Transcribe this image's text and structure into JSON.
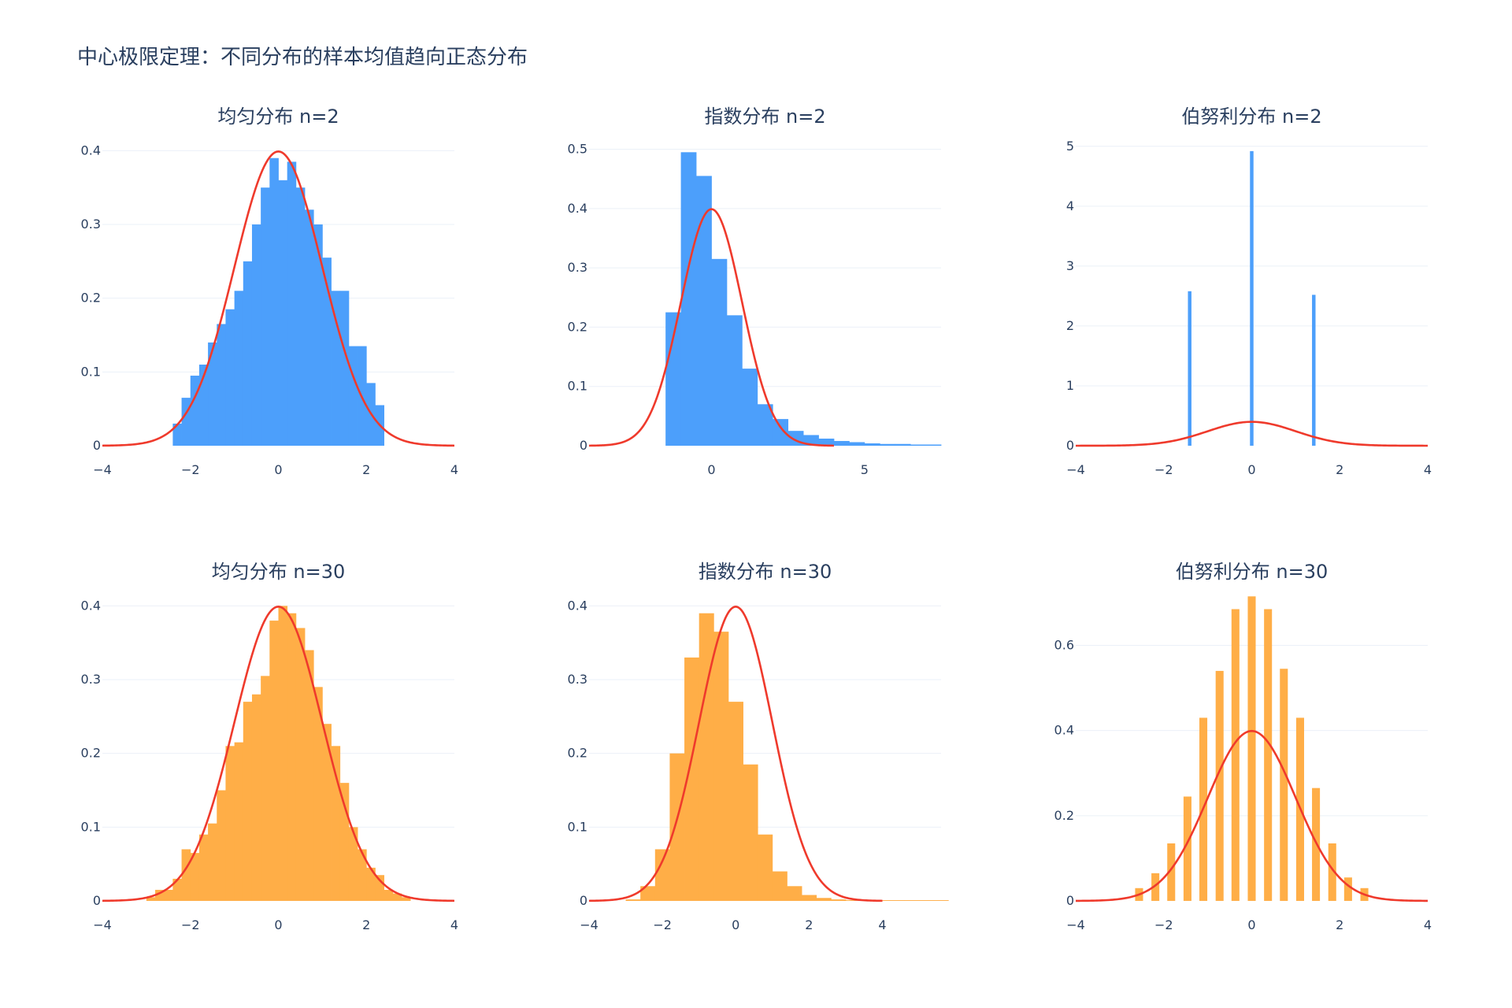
{
  "title": "中心极限定理：不同分布的样本均值趋向正态分布",
  "colors": {
    "small_n": "#4c9ffb",
    "large_n": "#ffae47",
    "curve": "#ef3a2c",
    "text": "#2a3f5f",
    "grid": "#ebf0f8"
  },
  "chart_data": [
    {
      "type": "bar",
      "title": "均匀分布 n=2",
      "color": "small_n",
      "x_ticks": [
        "−4",
        "−2",
        "0",
        "2",
        "4"
      ],
      "x_tick_values": [
        -4,
        -2,
        0,
        2,
        4
      ],
      "y_ticks": [
        "0",
        "0.1",
        "0.2",
        "0.3",
        "0.4"
      ],
      "y_tick_values": [
        0,
        0.1,
        0.2,
        0.3,
        0.4
      ],
      "xlim": [
        -4,
        4
      ],
      "ylim": [
        0,
        0.41
      ],
      "curve_xlim": [
        -4,
        4
      ],
      "bin_start": -2.4,
      "bin_width": 0.2,
      "values": [
        0.03,
        0.065,
        0.095,
        0.11,
        0.14,
        0.165,
        0.185,
        0.21,
        0.25,
        0.3,
        0.35,
        0.39,
        0.36,
        0.385,
        0.35,
        0.32,
        0.3,
        0.255,
        0.21,
        0.21,
        0.135,
        0.135,
        0.085,
        0.055
      ],
      "curve": "normal(0,1)"
    },
    {
      "type": "bar",
      "title": "指数分布 n=2",
      "color": "small_n",
      "x_ticks": [
        "0",
        "5"
      ],
      "x_tick_values": [
        0,
        5
      ],
      "y_ticks": [
        "0",
        "0.1",
        "0.2",
        "0.3",
        "0.4",
        "0.5"
      ],
      "y_tick_values": [
        0,
        0.1,
        0.2,
        0.3,
        0.4,
        0.5
      ],
      "xlim": [
        -4,
        7.5
      ],
      "ylim": [
        0,
        0.51
      ],
      "curve_xlim": [
        -4,
        4
      ],
      "bin_start": -1.5,
      "bin_width": 0.5,
      "values": [
        0.225,
        0.495,
        0.455,
        0.315,
        0.22,
        0.13,
        0.07,
        0.045,
        0.025,
        0.018,
        0.012,
        0.008,
        0.006,
        0.004,
        0.003,
        0.003,
        0.002,
        0.002
      ],
      "curve": "normal(0,1)"
    },
    {
      "type": "bar",
      "title": "伯努利分布 n=2",
      "color": "small_n",
      "x_ticks": [
        "−4",
        "−2",
        "0",
        "2",
        "4"
      ],
      "x_tick_values": [
        -4,
        -2,
        0,
        2,
        4
      ],
      "y_ticks": [
        "0",
        "1",
        "2",
        "3",
        "4",
        "5"
      ],
      "y_tick_values": [
        0,
        1,
        2,
        3,
        4,
        5
      ],
      "xlim": [
        -4,
        4
      ],
      "ylim": [
        0,
        5.05
      ],
      "curve_xlim": [
        -4,
        4
      ],
      "bars": [
        {
          "x": -1.41,
          "width": 0.08,
          "value": 2.58
        },
        {
          "x": 0.0,
          "width": 0.08,
          "value": 4.92
        },
        {
          "x": 1.41,
          "width": 0.08,
          "value": 2.52
        }
      ],
      "curve": "normal(0,1)"
    },
    {
      "type": "bar",
      "title": "均匀分布 n=30",
      "color": "large_n",
      "x_ticks": [
        "−4",
        "−2",
        "0",
        "2",
        "4"
      ],
      "x_tick_values": [
        -4,
        -2,
        0,
        2,
        4
      ],
      "y_ticks": [
        "0",
        "0.1",
        "0.2",
        "0.3",
        "0.4"
      ],
      "y_tick_values": [
        0,
        0.1,
        0.2,
        0.3,
        0.4
      ],
      "xlim": [
        -4,
        4
      ],
      "ylim": [
        0,
        0.41
      ],
      "curve_xlim": [
        -4,
        4
      ],
      "bin_start": -3.0,
      "bin_width": 0.2,
      "values": [
        0.005,
        0.015,
        0.015,
        0.03,
        0.07,
        0.065,
        0.09,
        0.105,
        0.15,
        0.21,
        0.215,
        0.27,
        0.28,
        0.305,
        0.38,
        0.4,
        0.39,
        0.37,
        0.34,
        0.29,
        0.24,
        0.21,
        0.16,
        0.1,
        0.07,
        0.045,
        0.035,
        0.015,
        0.01,
        0.005
      ],
      "curve": "normal(0,1)"
    },
    {
      "type": "bar",
      "title": "指数分布 n=30",
      "color": "large_n",
      "x_ticks": [
        "−4",
        "−2",
        "0",
        "2",
        "4"
      ],
      "x_tick_values": [
        -4,
        -2,
        0,
        2,
        4
      ],
      "y_ticks": [
        "0",
        "0.1",
        "0.2",
        "0.3",
        "0.4"
      ],
      "y_tick_values": [
        0,
        0.1,
        0.2,
        0.3,
        0.4
      ],
      "xlim": [
        -4,
        5.6
      ],
      "ylim": [
        0,
        0.41
      ],
      "curve_xlim": [
        -4,
        4
      ],
      "bin_start": -3.0,
      "bin_width": 0.4,
      "values": [
        0.002,
        0.02,
        0.07,
        0.2,
        0.33,
        0.39,
        0.365,
        0.27,
        0.185,
        0.09,
        0.04,
        0.02,
        0.008,
        0.004,
        0.002,
        0.001,
        0.001,
        0.001,
        0.001,
        0.001,
        0.001,
        0.001
      ],
      "curve": "normal(0,1)"
    },
    {
      "type": "bar",
      "title": "伯努利分布 n=30",
      "color": "large_n",
      "x_ticks": [
        "−4",
        "−2",
        "0",
        "2",
        "4"
      ],
      "x_tick_values": [
        -4,
        -2,
        0,
        2,
        4
      ],
      "y_ticks": [
        "0",
        "0.2",
        "0.4",
        "0.6"
      ],
      "y_tick_values": [
        0,
        0.2,
        0.4,
        0.6
      ],
      "xlim": [
        -4,
        4
      ],
      "ylim": [
        0,
        0.71
      ],
      "curve_xlim": [
        -4,
        4
      ],
      "bars": [
        {
          "x": -2.56,
          "width": 0.18,
          "value": 0.03
        },
        {
          "x": -2.19,
          "width": 0.18,
          "value": 0.065
        },
        {
          "x": -1.83,
          "width": 0.18,
          "value": 0.135
        },
        {
          "x": -1.46,
          "width": 0.18,
          "value": 0.245
        },
        {
          "x": -1.1,
          "width": 0.18,
          "value": 0.43
        },
        {
          "x": -0.73,
          "width": 0.18,
          "value": 0.54
        },
        {
          "x": -0.37,
          "width": 0.18,
          "value": 0.685
        },
        {
          "x": 0.0,
          "width": 0.18,
          "value": 0.715
        },
        {
          "x": 0.37,
          "width": 0.18,
          "value": 0.685
        },
        {
          "x": 0.73,
          "width": 0.18,
          "value": 0.545
        },
        {
          "x": 1.1,
          "width": 0.18,
          "value": 0.43
        },
        {
          "x": 1.46,
          "width": 0.18,
          "value": 0.265
        },
        {
          "x": 1.83,
          "width": 0.18,
          "value": 0.135
        },
        {
          "x": 2.19,
          "width": 0.18,
          "value": 0.055
        },
        {
          "x": 2.56,
          "width": 0.18,
          "value": 0.03
        }
      ],
      "curve": "normal(0,1)"
    }
  ]
}
